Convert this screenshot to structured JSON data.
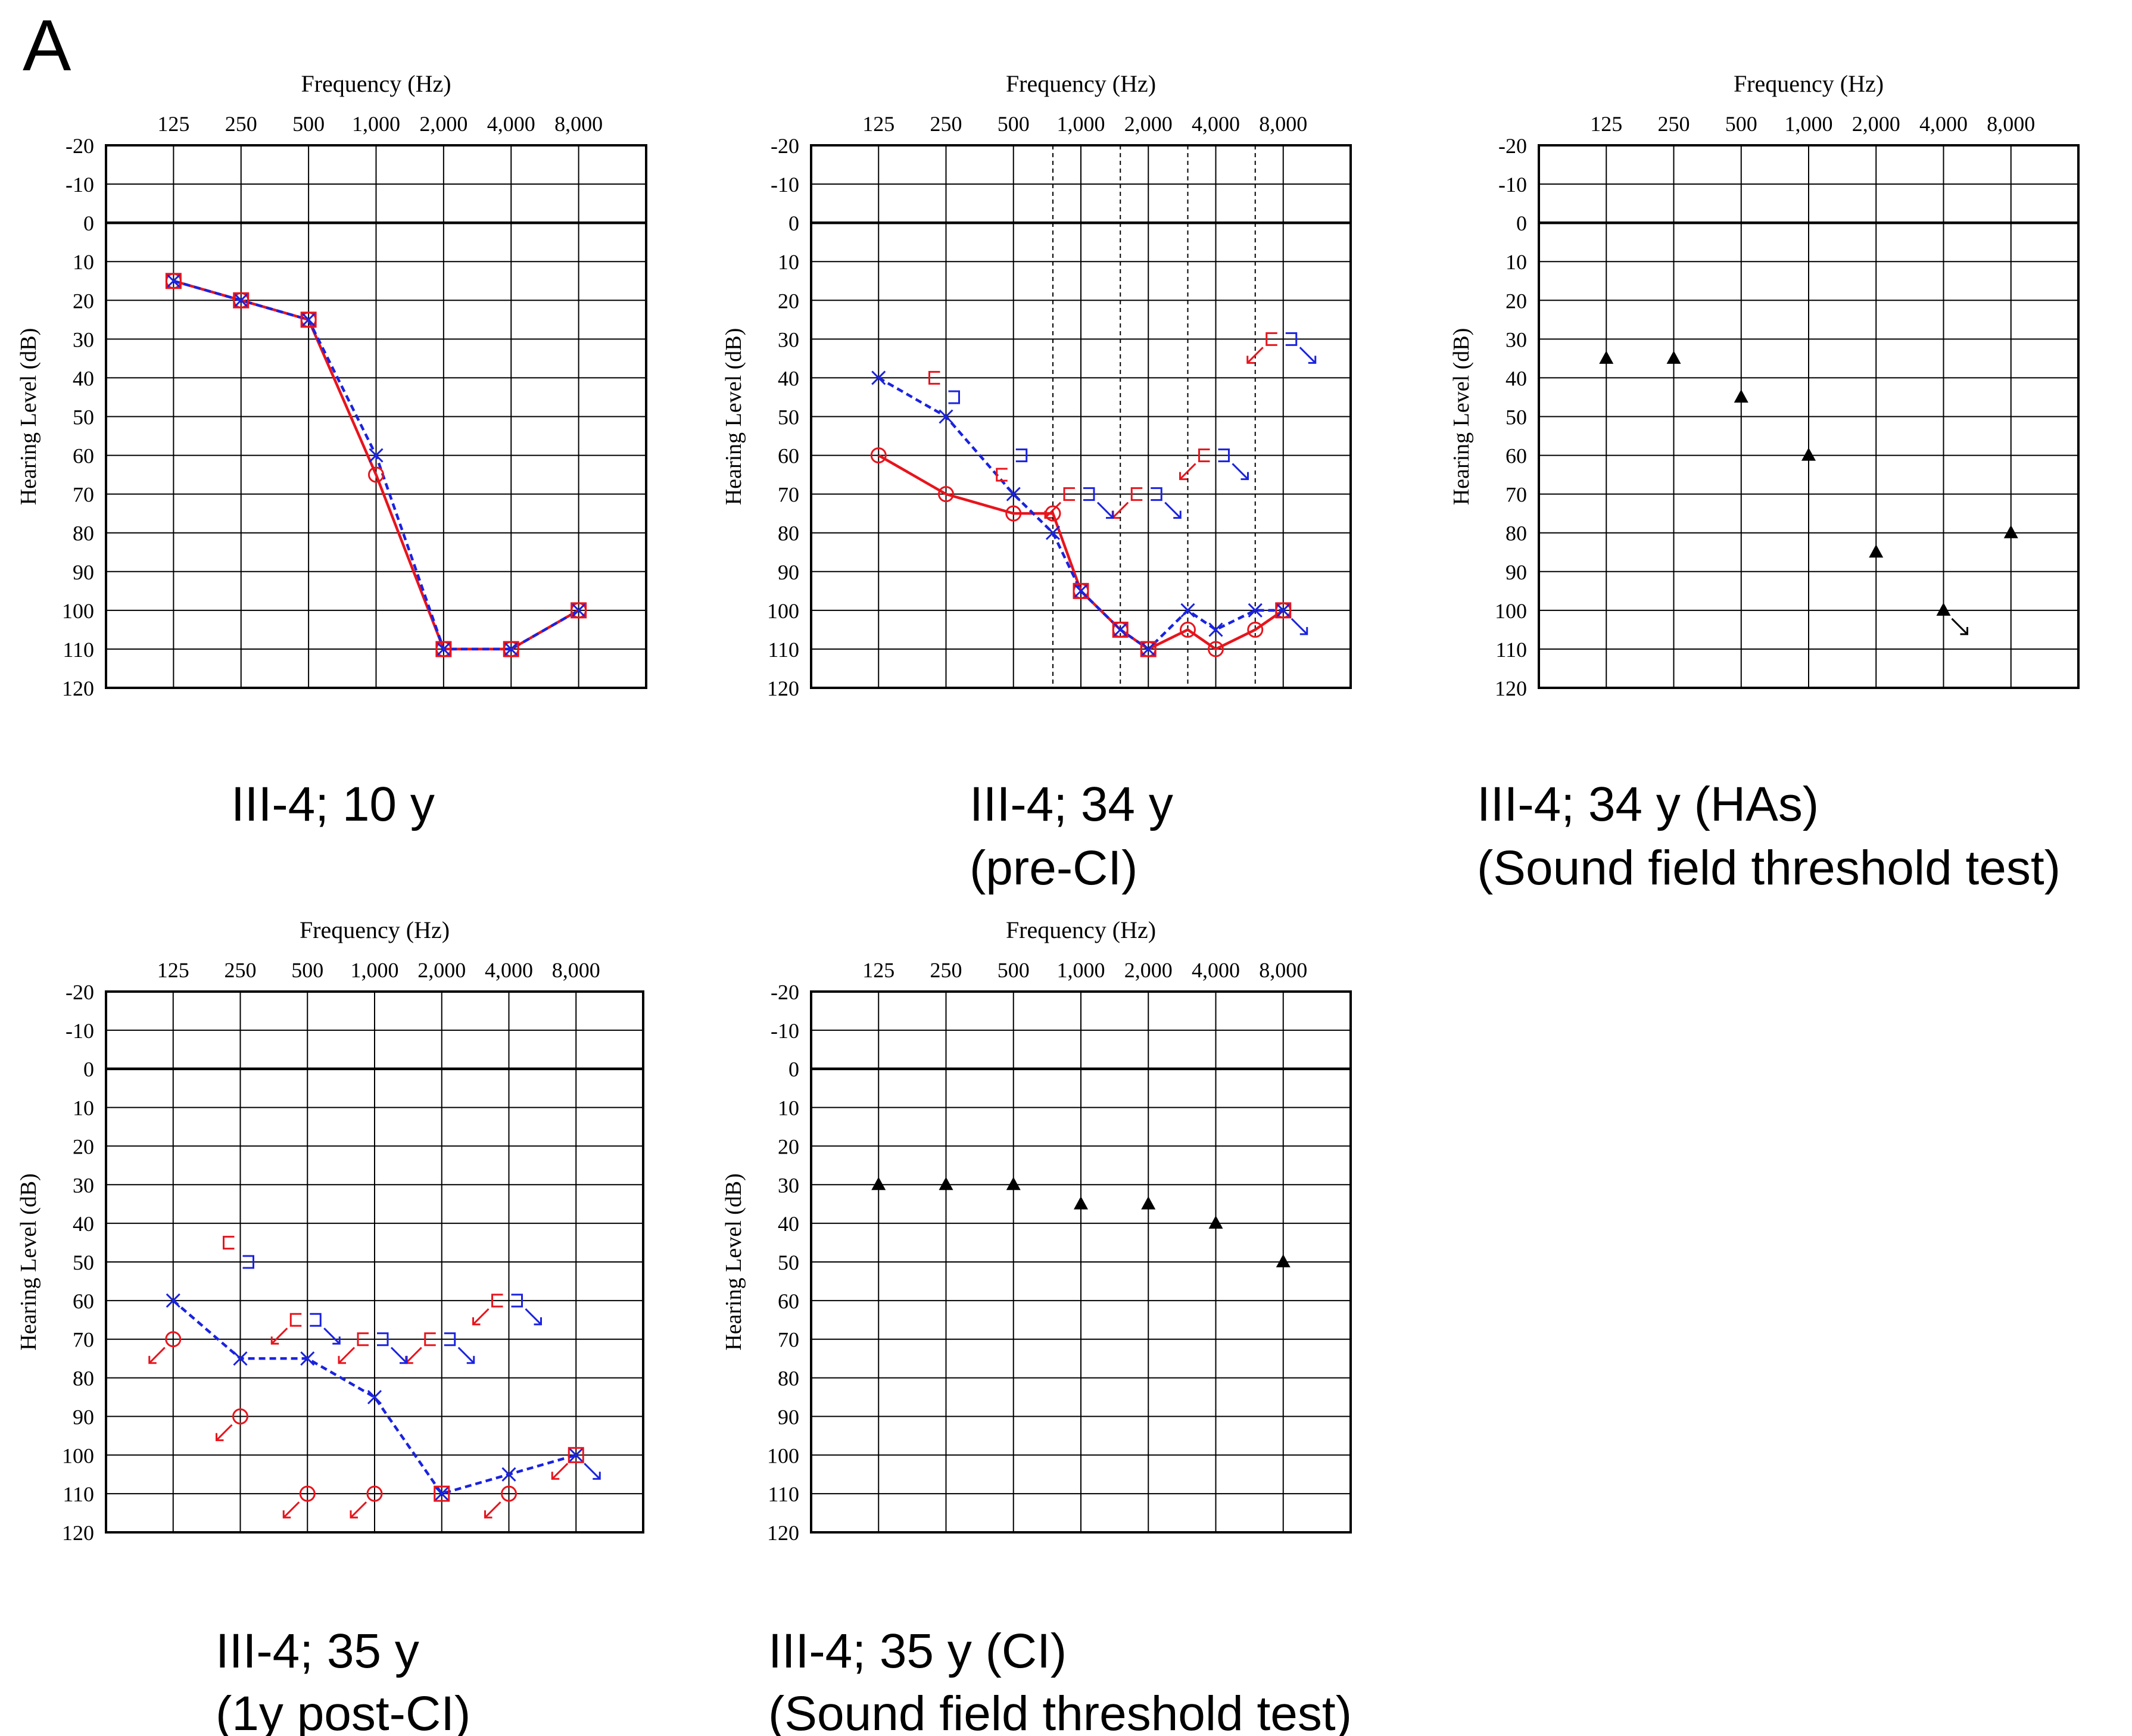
{
  "figure_label": "A",
  "colors": {
    "right": "#e8141c",
    "left": "#1a22e0",
    "soundfield": "#000000",
    "grid": "#000000"
  },
  "chart_data": [
    {
      "id": "p1",
      "type": "audiogram",
      "title": "Frequency (Hz)",
      "ylabel": "Hearing Level (dB)",
      "frequencies": [
        "125",
        "250",
        "500",
        "1,000",
        "2,000",
        "4,000",
        "8,000"
      ],
      "yticks": [
        "-20",
        "-10",
        "0",
        "10",
        "20",
        "30",
        "40",
        "50",
        "60",
        "70",
        "80",
        "90",
        "100",
        "110",
        "120"
      ],
      "ylim": [
        -20,
        120
      ],
      "dashed_half_octaves": false,
      "caption": [
        "III-4; 10 y"
      ],
      "right_air": {
        "line": "solid",
        "points": [
          [
            125,
            15
          ],
          [
            250,
            20
          ],
          [
            500,
            25
          ],
          [
            1000,
            65
          ],
          [
            2000,
            110
          ],
          [
            4000,
            110
          ],
          [
            8000,
            100
          ]
        ]
      },
      "left_air": {
        "line": "dashed",
        "points": [
          [
            125,
            15
          ],
          [
            250,
            20
          ],
          [
            500,
            25
          ],
          [
            1000,
            60
          ],
          [
            2000,
            110
          ],
          [
            4000,
            110
          ],
          [
            8000,
            100
          ]
        ]
      },
      "overlap_squares": [
        [
          125,
          15
        ],
        [
          250,
          20
        ],
        [
          500,
          25
        ],
        [
          2000,
          110
        ],
        [
          4000,
          110
        ],
        [
          8000,
          100
        ]
      ],
      "right_bone": [],
      "left_bone": [],
      "soundfield": []
    },
    {
      "id": "p2",
      "type": "audiogram",
      "title": "Frequency (Hz)",
      "ylabel": "Hearing Level (dB)",
      "frequencies": [
        "125",
        "250",
        "500",
        "1,000",
        "2,000",
        "4,000",
        "8,000"
      ],
      "yticks": [
        "-20",
        "-10",
        "0",
        "10",
        "20",
        "30",
        "40",
        "50",
        "60",
        "70",
        "80",
        "90",
        "100",
        "110",
        "120"
      ],
      "ylim": [
        -20,
        120
      ],
      "dashed_half_octaves": true,
      "caption": [
        "III-4; 34 y",
        "(pre-CI)"
      ],
      "right_air": {
        "line": "solid",
        "points": [
          [
            125,
            60
          ],
          [
            250,
            70
          ],
          [
            500,
            75
          ],
          [
            750,
            75
          ],
          [
            1000,
            95
          ],
          [
            1500,
            105
          ],
          [
            2000,
            110
          ],
          [
            3000,
            105
          ],
          [
            4000,
            110
          ],
          [
            6000,
            105
          ],
          [
            8000,
            100
          ]
        ]
      },
      "left_air": {
        "line": "dashed",
        "points": [
          [
            125,
            40
          ],
          [
            250,
            50
          ],
          [
            500,
            70
          ],
          [
            750,
            80
          ],
          [
            1000,
            95
          ],
          [
            1500,
            105
          ],
          [
            2000,
            110
          ],
          [
            3000,
            100
          ],
          [
            4000,
            105
          ],
          [
            6000,
            100
          ],
          [
            8000,
            100
          ]
        ]
      },
      "overlap_squares": [
        [
          1000,
          95
        ],
        [
          1500,
          105
        ],
        [
          2000,
          110
        ],
        [
          8000,
          100
        ]
      ],
      "right_bone": [
        {
          "freq": 250,
          "db": 40,
          "noresp": false
        },
        {
          "freq": 500,
          "db": 65,
          "noresp": false
        },
        {
          "freq": 1000,
          "db": 70,
          "noresp": true
        },
        {
          "freq": 2000,
          "db": 70,
          "noresp": true
        },
        {
          "freq": 4000,
          "db": 60,
          "noresp": true
        },
        {
          "freq": 8000,
          "db": 30,
          "noresp": true
        }
      ],
      "left_bone": [
        {
          "freq": 250,
          "db": 45,
          "noresp": false
        },
        {
          "freq": 500,
          "db": 60,
          "noresp": false
        },
        {
          "freq": 1000,
          "db": 70,
          "noresp": true
        },
        {
          "freq": 2000,
          "db": 70,
          "noresp": true
        },
        {
          "freq": 4000,
          "db": 60,
          "noresp": true
        },
        {
          "freq": 8000,
          "db": 30,
          "noresp": true
        }
      ],
      "right_air_noresp": [],
      "left_air_noresp": [
        8000
      ],
      "soundfield": []
    },
    {
      "id": "p3",
      "type": "audiogram",
      "title": "Frequency (Hz)",
      "ylabel": "Hearing Level (dB)",
      "frequencies": [
        "125",
        "250",
        "500",
        "1,000",
        "2,000",
        "4,000",
        "8,000"
      ],
      "yticks": [
        "-20",
        "-10",
        "0",
        "10",
        "20",
        "30",
        "40",
        "50",
        "60",
        "70",
        "80",
        "90",
        "100",
        "110",
        "120"
      ],
      "ylim": [
        -20,
        120
      ],
      "dashed_half_octaves": false,
      "caption": [
        "III-4; 34 y (HAs)",
        "(Sound field threshold test)"
      ],
      "right_air": null,
      "left_air": null,
      "overlap_squares": [],
      "right_bone": [],
      "left_bone": [],
      "soundfield": [
        {
          "freq": 125,
          "db": 35,
          "noresp": false
        },
        {
          "freq": 250,
          "db": 35,
          "noresp": false
        },
        {
          "freq": 500,
          "db": 45,
          "noresp": false
        },
        {
          "freq": 1000,
          "db": 60,
          "noresp": false
        },
        {
          "freq": 2000,
          "db": 85,
          "noresp": false
        },
        {
          "freq": 4000,
          "db": 100,
          "noresp": true
        },
        {
          "freq": 8000,
          "db": 80,
          "noresp": false
        }
      ]
    },
    {
      "id": "p4",
      "type": "audiogram",
      "title": "Frequency (Hz)",
      "ylabel": "Hearing Level (dB)",
      "frequencies": [
        "125",
        "250",
        "500",
        "1,000",
        "2,000",
        "4,000",
        "8,000"
      ],
      "yticks": [
        "-20",
        "-10",
        "0",
        "10",
        "20",
        "30",
        "40",
        "50",
        "60",
        "70",
        "80",
        "90",
        "100",
        "110",
        "120"
      ],
      "ylim": [
        -20,
        120
      ],
      "dashed_half_octaves": false,
      "caption": [
        "III-4; 35 y",
        "(1y post-CI)"
      ],
      "right_air": {
        "line": "none",
        "points": [
          [
            125,
            70
          ],
          [
            250,
            90
          ],
          [
            500,
            110
          ],
          [
            1000,
            110
          ],
          [
            4000,
            110
          ]
        ]
      },
      "right_air_noresp": [
        125,
        250,
        500,
        1000,
        4000,
        8000
      ],
      "left_air": {
        "line": "dashed",
        "points": [
          [
            125,
            60
          ],
          [
            250,
            75
          ],
          [
            500,
            75
          ],
          [
            1000,
            85
          ],
          [
            2000,
            110
          ],
          [
            4000,
            105
          ],
          [
            8000,
            100
          ]
        ]
      },
      "left_air_noresp": [
        8000
      ],
      "overlap_squares": [
        [
          2000,
          110
        ],
        [
          8000,
          100
        ]
      ],
      "right_bone": [
        {
          "freq": 250,
          "db": 45,
          "noresp": false
        },
        {
          "freq": 500,
          "db": 65,
          "noresp": true
        },
        {
          "freq": 1000,
          "db": 70,
          "noresp": true
        },
        {
          "freq": 2000,
          "db": 70,
          "noresp": true
        },
        {
          "freq": 4000,
          "db": 60,
          "noresp": true
        }
      ],
      "left_bone": [
        {
          "freq": 250,
          "db": 50,
          "noresp": false
        },
        {
          "freq": 500,
          "db": 65,
          "noresp": true
        },
        {
          "freq": 1000,
          "db": 70,
          "noresp": true
        },
        {
          "freq": 2000,
          "db": 70,
          "noresp": true
        },
        {
          "freq": 4000,
          "db": 60,
          "noresp": true
        }
      ],
      "soundfield": []
    },
    {
      "id": "p5",
      "type": "audiogram",
      "title": "Frequency (Hz)",
      "ylabel": "Hearing Level (dB)",
      "frequencies": [
        "125",
        "250",
        "500",
        "1,000",
        "2,000",
        "4,000",
        "8,000"
      ],
      "yticks": [
        "-20",
        "-10",
        "0",
        "10",
        "20",
        "30",
        "40",
        "50",
        "60",
        "70",
        "80",
        "90",
        "100",
        "110",
        "120"
      ],
      "ylim": [
        -20,
        120
      ],
      "dashed_half_octaves": false,
      "caption": [
        "III-4; 35 y (CI)",
        "(Sound field threshold test)"
      ],
      "right_air": null,
      "left_air": null,
      "overlap_squares": [],
      "right_bone": [],
      "left_bone": [],
      "soundfield": [
        {
          "freq": 125,
          "db": 30,
          "noresp": false
        },
        {
          "freq": 250,
          "db": 30,
          "noresp": false
        },
        {
          "freq": 500,
          "db": 30,
          "noresp": false
        },
        {
          "freq": 1000,
          "db": 35,
          "noresp": false
        },
        {
          "freq": 2000,
          "db": 35,
          "noresp": false
        },
        {
          "freq": 4000,
          "db": 40,
          "noresp": false
        },
        {
          "freq": 8000,
          "db": 50,
          "noresp": false
        }
      ]
    }
  ]
}
